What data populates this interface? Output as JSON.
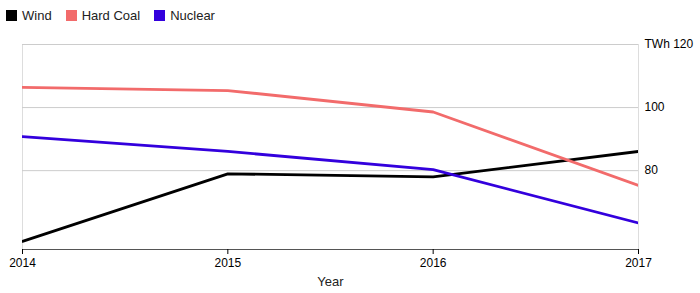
{
  "chart_data": {
    "type": "line",
    "x_label": "Year",
    "x": [
      2014,
      2015,
      2016,
      2017
    ],
    "series": [
      {
        "name": "Wind",
        "color": "#000000",
        "values": [
          57.6,
          79.0,
          78.0,
          86.1
        ]
      },
      {
        "name": "Hard Coal",
        "color": "#f26b6b",
        "values": [
          106.4,
          105.4,
          98.6,
          75.3
        ]
      },
      {
        "name": "Nuclear",
        "color": "#3300dd",
        "values": [
          90.8,
          86.1,
          80.3,
          63.4
        ]
      }
    ],
    "xlim": [
      2014,
      2017
    ],
    "xticks": [
      2014,
      2015,
      2016,
      2017
    ],
    "ylim": [
      55,
      120
    ],
    "yticks": [
      80,
      100,
      {
        "value": 120,
        "label": "TWh 120"
      }
    ],
    "grid": true,
    "legend": "top-left"
  }
}
